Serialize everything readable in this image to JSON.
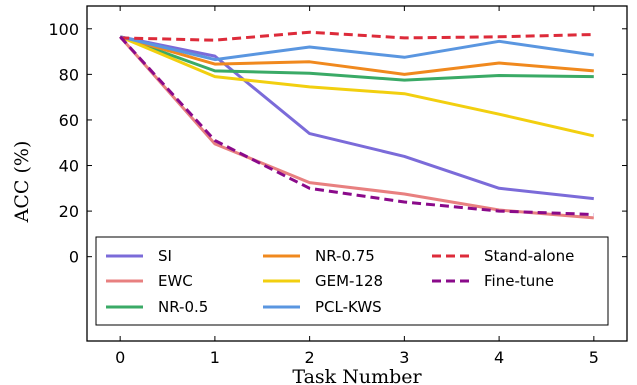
{
  "chart_data": {
    "type": "line",
    "title": "",
    "xlabel": "Task Number",
    "ylabel": "ACC (%)",
    "x": [
      0,
      1,
      2,
      3,
      4,
      5
    ],
    "xlim": [
      -0.35,
      5.35
    ],
    "ylim": [
      -37,
      110
    ],
    "xticks": [
      "0",
      "1",
      "2",
      "3",
      "4",
      "5"
    ],
    "yticks": [
      "0",
      "20",
      "40",
      "60",
      "80",
      "100"
    ],
    "ytick_values": [
      0,
      20,
      40,
      60,
      80,
      100
    ],
    "grid": false,
    "legend_position": "bottom",
    "series": [
      {
        "name": "SI",
        "color": "#7b6bd9",
        "dash": "solid",
        "values": [
          96.5,
          88,
          54,
          44,
          30,
          25.5
        ]
      },
      {
        "name": "EWC",
        "color": "#e88080",
        "dash": "solid",
        "values": [
          96.5,
          49.5,
          32.5,
          27.5,
          20.5,
          17
        ]
      },
      {
        "name": "NR-0.5",
        "color": "#3aaa66",
        "dash": "solid",
        "values": [
          96.5,
          81.5,
          80.5,
          77.5,
          79.5,
          79
        ]
      },
      {
        "name": "NR-0.75",
        "color": "#f0891e",
        "dash": "solid",
        "values": [
          96.5,
          84.5,
          85.5,
          80,
          85,
          81.5
        ]
      },
      {
        "name": "GEM-128",
        "color": "#f2cf0f",
        "dash": "solid",
        "values": [
          96.5,
          79,
          74.5,
          71.5,
          62.5,
          53
        ]
      },
      {
        "name": "PCL-KWS",
        "color": "#5a96e0",
        "dash": "solid",
        "values": [
          96.5,
          86.5,
          92,
          87.5,
          94.5,
          88.5
        ]
      },
      {
        "name": "Stand-alone",
        "color": "#dd2b3a",
        "dash": "dashed",
        "values": [
          96,
          95,
          98.5,
          96,
          96.5,
          97.5
        ]
      },
      {
        "name": "Fine-tune",
        "color": "#8a0a8a",
        "dash": "dashed",
        "values": [
          96.5,
          51,
          30,
          24,
          20,
          18.5
        ]
      }
    ]
  }
}
